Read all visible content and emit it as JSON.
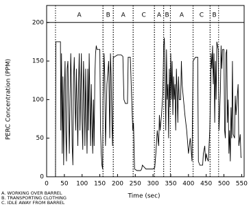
{
  "chart_data": {
    "type": "line",
    "y_label": "PERC Concentration (PPM)",
    "x_label": "Time (sec)",
    "color": "#000000",
    "xlim": [
      0,
      557
    ],
    "ylim": [
      0,
      222
    ],
    "xticks": [
      0,
      50,
      100,
      150,
      200,
      250,
      300,
      350,
      400,
      450,
      500,
      550
    ],
    "yticks": [
      0,
      50,
      100,
      150,
      200
    ],
    "header_line": 200,
    "phases": [
      {
        "label": "A",
        "start": 25,
        "end": 159
      },
      {
        "label": "B",
        "start": 159,
        "end": 188
      },
      {
        "label": "A",
        "start": 188,
        "end": 244
      },
      {
        "label": "C",
        "start": 244,
        "end": 304
      },
      {
        "label": "A",
        "start": 304,
        "end": 330
      },
      {
        "label": "B",
        "start": 330,
        "end": 349
      },
      {
        "label": "A",
        "start": 349,
        "end": 413
      },
      {
        "label": "C",
        "start": 413,
        "end": 461
      },
      {
        "label": "B",
        "start": 461,
        "end": 485
      }
    ],
    "legend_notes": [
      "A. WORKING OVER BARREL",
      "B. TRANSPORTING CLOTHING",
      "C. IDLE AWAY FROM BARREL"
    ],
    "x": [
      25,
      26,
      39,
      40,
      42,
      44,
      46,
      48,
      50,
      52,
      54,
      56,
      58,
      60,
      62,
      64,
      66,
      68,
      70,
      72,
      74,
      76,
      78,
      80,
      82,
      84,
      86,
      88,
      90,
      92,
      94,
      96,
      98,
      100,
      102,
      104,
      106,
      108,
      110,
      112,
      114,
      116,
      118,
      120,
      122,
      124,
      126,
      128,
      130,
      132,
      134,
      136,
      138,
      140,
      142,
      150,
      152,
      154,
      156,
      158,
      159,
      160,
      162,
      164,
      166,
      168,
      170,
      175,
      178,
      180,
      182,
      184,
      186,
      188,
      190,
      200,
      210,
      215,
      218,
      222,
      228,
      230,
      236,
      240,
      243,
      245,
      248,
      255,
      265,
      268,
      270,
      280,
      290,
      300,
      305,
      308,
      312,
      316,
      318,
      320,
      324,
      328,
      330,
      332,
      334,
      336,
      338,
      340,
      342,
      344,
      346,
      348,
      350,
      352,
      354,
      356,
      358,
      360,
      362,
      364,
      366,
      368,
      370,
      372,
      374,
      378,
      380,
      382,
      386,
      390,
      395,
      400,
      405,
      410,
      413,
      420,
      426,
      428,
      432,
      440,
      442,
      446,
      448,
      450,
      452,
      456,
      460,
      462,
      464,
      466,
      468,
      470,
      472,
      474,
      476,
      478,
      480,
      484,
      486,
      490,
      492,
      494,
      496,
      500,
      502,
      504,
      506,
      508,
      510,
      512,
      514,
      516,
      518,
      520,
      522,
      524,
      526,
      530,
      532,
      534,
      540,
      542,
      546,
      548,
      550
    ],
    "values": [
      0,
      175,
      175,
      60,
      160,
      30,
      130,
      15,
      110,
      150,
      60,
      20,
      140,
      150,
      90,
      30,
      100,
      160,
      120,
      40,
      15,
      130,
      155,
      100,
      60,
      140,
      90,
      40,
      120,
      160,
      60,
      110,
      160,
      70,
      35,
      150,
      110,
      40,
      140,
      80,
      30,
      140,
      60,
      160,
      100,
      40,
      120,
      70,
      30,
      100,
      40,
      130,
      160,
      170,
      165,
      165,
      60,
      30,
      15,
      10,
      100,
      110,
      160,
      130,
      40,
      80,
      120,
      150,
      50,
      160,
      130,
      70,
      40,
      155,
      155,
      158,
      158,
      156,
      100,
      95,
      95,
      155,
      155,
      100,
      60,
      70,
      10,
      8,
      8,
      10,
      15,
      10,
      10,
      10,
      12,
      30,
      60,
      40,
      80,
      60,
      80,
      110,
      170,
      180,
      130,
      60,
      165,
      100,
      120,
      50,
      140,
      90,
      160,
      100,
      150,
      80,
      130,
      100,
      120,
      60,
      140,
      110,
      70,
      130,
      100,
      100,
      150,
      120,
      100,
      80,
      60,
      30,
      50,
      20,
      150,
      155,
      155,
      20,
      15,
      15,
      30,
      40,
      20,
      30,
      25,
      20,
      60,
      100,
      160,
      140,
      170,
      120,
      160,
      70,
      150,
      100,
      175,
      165,
      60,
      110,
      170,
      140,
      165,
      165,
      60,
      50,
      160,
      165,
      70,
      100,
      30,
      60,
      20,
      90,
      50,
      150,
      55,
      50,
      105,
      80,
      120,
      40,
      55,
      25,
      25
    ]
  }
}
